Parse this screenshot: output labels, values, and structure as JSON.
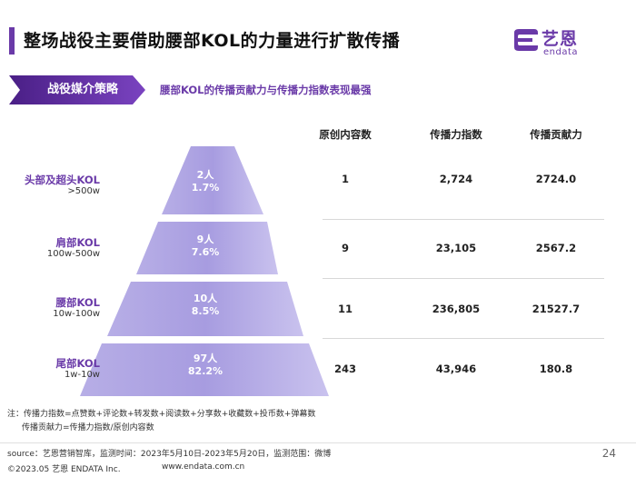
{
  "title": "整场战役主要借助腰部KOL的力量进行扩散传播",
  "logo": {
    "cn": "艺恩",
    "en": "endata",
    "color": "#6a3aa8"
  },
  "strategy": {
    "label": "战役媒介策略",
    "description": "腰部KOL的传播贡献力与传播力指数表现最强"
  },
  "columns": [
    "原创内容数",
    "传播力指数",
    "传播贡献力"
  ],
  "tiers": [
    {
      "name": "头部及超头KOL",
      "range": ">500w",
      "count": "2人",
      "percent": "1.7%",
      "original": "1",
      "spread_index": "2,724",
      "contribution": "2724.0"
    },
    {
      "name": "肩部KOL",
      "range": "100w-500w",
      "count": "9人",
      "percent": "7.6%",
      "original": "9",
      "spread_index": "23,105",
      "contribution": "2567.2"
    },
    {
      "name": "腰部KOL",
      "range": "10w-100w",
      "count": "10人",
      "percent": "8.5%",
      "original": "11",
      "spread_index": "236,805",
      "contribution": "21527.7"
    },
    {
      "name": "尾部KOL",
      "range": "1w-10w",
      "count": "97人",
      "percent": "82.2%",
      "original": "243",
      "spread_index": "43,946",
      "contribution": "180.8"
    }
  ],
  "notes": {
    "line1": "注：传播力指数=点赞数+评论数+转发数+阅读数+分享数+收藏数+投币数+弹幕数",
    "line2": "传播贡献力=传播力指数/原创内容数"
  },
  "footer": {
    "source": "source：艺恩营销智库，监测时间：2023年5月10日-2023年5月20日，监测范围：微博",
    "copyright": "©2023.05 艺恩 ENDATA Inc.",
    "website": "www.endata.com.cn",
    "page": "24"
  },
  "colors": {
    "accent": "#6a3aa8",
    "pyramid_light": "#b9b0e6",
    "pyramid_dark": "#9a8fdc"
  }
}
